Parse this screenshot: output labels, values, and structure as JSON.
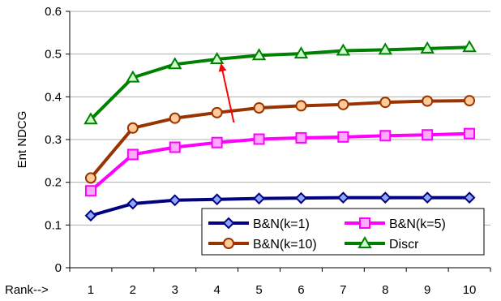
{
  "chart_data": {
    "type": "line",
    "title": "",
    "xlabel": "Rank-->",
    "ylabel": "Ent NDCG",
    "categories": [
      "1",
      "2",
      "3",
      "4",
      "5",
      "6",
      "7",
      "8",
      "9",
      "10"
    ],
    "ylim": [
      0,
      0.6
    ],
    "yticks": [
      "0",
      "0.1",
      "0.2",
      "0.3",
      "0.4",
      "0.5",
      "0.6"
    ],
    "grid": "horizontal",
    "legend_position": "bottom-right",
    "series": [
      {
        "name": "B&N(k=1)",
        "color": "#000080",
        "marker": "diamond",
        "marker_fill": "#8ea8ff",
        "values": [
          0.122,
          0.15,
          0.158,
          0.16,
          0.162,
          0.163,
          0.164,
          0.164,
          0.164,
          0.164
        ]
      },
      {
        "name": "B&N(k=5)",
        "color": "#ff00ff",
        "marker": "square",
        "marker_fill": "#ffaaff",
        "values": [
          0.18,
          0.265,
          0.282,
          0.293,
          0.301,
          0.304,
          0.306,
          0.309,
          0.311,
          0.314
        ]
      },
      {
        "name": "B&N(k=10)",
        "color": "#993300",
        "marker": "circle",
        "marker_fill": "#ffcc99",
        "values": [
          0.21,
          0.327,
          0.35,
          0.363,
          0.374,
          0.379,
          0.382,
          0.387,
          0.39,
          0.391
        ]
      },
      {
        "name": "Discr",
        "color": "#008000",
        "marker": "triangle",
        "marker_fill": "#ccffcc",
        "values": [
          0.347,
          0.445,
          0.476,
          0.488,
          0.497,
          0.501,
          0.508,
          0.51,
          0.513,
          0.516
        ]
      }
    ],
    "annotation": {
      "type": "arrow",
      "color": "#ff0000",
      "from": [
        4.4,
        0.34
      ],
      "to": [
        4.1,
        0.475
      ]
    }
  }
}
